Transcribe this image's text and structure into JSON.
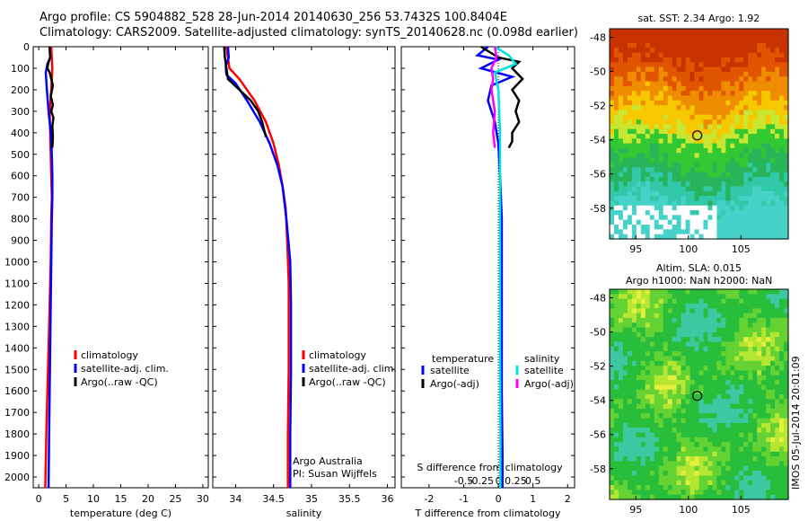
{
  "header": {
    "line1": "Argo profile: CS 5904882_528 28-Jun-2014 20140630_256 53.7432S 100.8404E",
    "line2": "Climatology: CARS2009. Satellite-adjusted climatology: synTS_20140628.nc (0.098d earlier)"
  },
  "chart_data": [
    {
      "type": "line",
      "id": "temperature",
      "xlabel": "temperature (deg C)",
      "ylabel": "",
      "xlim": [
        -1,
        31
      ],
      "ylim": [
        2050,
        0
      ],
      "xticks": [
        0,
        5,
        10,
        15,
        20,
        25,
        30
      ],
      "yticks": [
        0,
        100,
        200,
        300,
        400,
        500,
        600,
        700,
        800,
        900,
        1000,
        1100,
        1200,
        1300,
        1400,
        1500,
        1600,
        1700,
        1800,
        1900,
        2000
      ],
      "legend": [
        "climatology",
        "satellite-adj. clim.",
        "Argo(..raw -QC)"
      ],
      "series": [
        {
          "name": "climatology",
          "color": "#ff0000",
          "x": [
            2.3,
            2.4,
            2.5,
            2.3,
            2.0,
            2.1,
            2.2,
            2.3,
            2.4,
            2.3,
            2.2,
            2.0,
            1.8,
            1.6,
            1.4,
            1.2
          ],
          "y": [
            0,
            50,
            100,
            200,
            300,
            400,
            500,
            600,
            700,
            800,
            1000,
            1200,
            1400,
            1600,
            1800,
            2050
          ]
        },
        {
          "name": "satellite-adj. clim.",
          "color": "#0000ff",
          "x": [
            2.0,
            2.1,
            1.6,
            1.3,
            1.5,
            1.8,
            2.2,
            2.4,
            2.5,
            2.5,
            2.4,
            2.3,
            2.2,
            2.1,
            2.0,
            1.9,
            1.8
          ],
          "y": [
            0,
            50,
            80,
            120,
            200,
            300,
            400,
            500,
            600,
            700,
            800,
            1000,
            1200,
            1400,
            1600,
            1800,
            2050
          ]
        },
        {
          "name": "Argo(..raw -QC)",
          "color": "#000000",
          "x": [
            2.0,
            2.1,
            1.7,
            1.6,
            2.0,
            2.3,
            2.6,
            2.2,
            2.6,
            2.3,
            2.7,
            2.5,
            2.6,
            2.5
          ],
          "y": [
            0,
            50,
            80,
            100,
            120,
            150,
            180,
            230,
            270,
            300,
            330,
            370,
            420,
            470
          ]
        }
      ]
    },
    {
      "type": "line",
      "id": "salinity",
      "xlabel": "salinity",
      "ylabel": "",
      "xlim": [
        33.7,
        36.1
      ],
      "ylim": [
        2050,
        0
      ],
      "xticks": [
        34,
        34.5,
        35,
        35.5,
        36
      ],
      "legend": [
        "climatology",
        "satellite-adj. clim.",
        "Argo(..raw -QC)"
      ],
      "annotation": [
        "Argo Australia",
        "PI: Susan Wijffels"
      ],
      "series": [
        {
          "name": "climatology",
          "color": "#ff0000",
          "x": [
            33.88,
            33.9,
            33.92,
            34.05,
            34.25,
            34.4,
            34.5,
            34.57,
            34.62,
            34.66,
            34.68,
            34.7,
            34.7,
            34.7,
            34.69,
            34.69
          ],
          "y": [
            0,
            50,
            100,
            150,
            250,
            350,
            450,
            550,
            650,
            750,
            900,
            1100,
            1300,
            1500,
            1800,
            2050
          ]
        },
        {
          "name": "satellite-adj. clim.",
          "color": "#0000ff",
          "x": [
            33.9,
            33.91,
            33.87,
            33.88,
            34.0,
            34.15,
            34.32,
            34.45,
            34.55,
            34.62,
            34.67,
            34.72,
            34.73,
            34.73,
            34.72,
            34.72
          ],
          "y": [
            0,
            50,
            90,
            130,
            170,
            250,
            350,
            450,
            550,
            650,
            800,
            1000,
            1200,
            1500,
            1800,
            2050
          ]
        },
        {
          "name": "Argo(..raw -QC)",
          "color": "#000000",
          "x": [
            33.85,
            33.86,
            33.88,
            33.9,
            34.05,
            34.2,
            34.3,
            34.35,
            34.4
          ],
          "y": [
            0,
            50,
            100,
            150,
            200,
            250,
            300,
            350,
            420
          ]
        }
      ]
    },
    {
      "type": "line",
      "id": "difference",
      "xlabel": "T difference from climatology",
      "ylabel": "",
      "xlim": [
        -2.8,
        2.2
      ],
      "ylim": [
        2050,
        0
      ],
      "xticks": [
        -2,
        -1,
        0,
        1,
        2
      ],
      "secondary_xlabel": "S difference from climatology",
      "secondary_xticks": [
        "-0.5",
        "-0.25",
        "0",
        "0.25",
        "0.5"
      ],
      "legend_headers": [
        "temperature",
        "salinity"
      ],
      "legend": [
        "satellite",
        "Argo(-adj)",
        "satellite",
        "Argo(-adj)"
      ],
      "series": [
        {
          "name": "temperature satellite",
          "color": "#0000ff",
          "x": [
            -0.3,
            -0.6,
            0.0,
            -0.5,
            0.4,
            -0.2,
            -0.3,
            -0.1,
            0.0,
            0.05,
            0.1,
            0.1,
            0.1,
            0.1,
            0.12,
            0.12
          ],
          "y": [
            0,
            40,
            60,
            100,
            140,
            180,
            250,
            350,
            450,
            600,
            800,
            1000,
            1300,
            1600,
            1900,
            2050
          ]
        },
        {
          "name": "temperature Argo(-adj)",
          "color": "#000000",
          "x": [
            -0.5,
            0.0,
            0.6,
            0.4,
            0.7,
            0.4,
            0.6,
            0.5,
            0.6,
            0.4,
            0.4,
            0.3
          ],
          "y": [
            0,
            50,
            70,
            100,
            150,
            200,
            250,
            300,
            350,
            400,
            440,
            470
          ]
        },
        {
          "name": "salinity satellite",
          "color": "#00e0e0",
          "x": [
            -0.1,
            0.3,
            0.5,
            -0.1,
            0.0,
            0.05,
            0.05,
            0.05,
            0.05,
            0.06,
            0.06
          ],
          "y": [
            0,
            40,
            80,
            120,
            200,
            400,
            700,
            1000,
            1400,
            1800,
            2050
          ]
        },
        {
          "name": "salinity Argo(-adj)",
          "color": "#ff00ff",
          "x": [
            -0.1,
            -0.05,
            -0.2,
            -0.15,
            -0.2,
            -0.1,
            -0.15,
            -0.1
          ],
          "y": [
            0,
            50,
            100,
            150,
            200,
            300,
            400,
            470
          ]
        }
      ]
    },
    {
      "type": "heatmap",
      "id": "sst-map",
      "title": "sat. SST: 2.34 Argo: 1.92",
      "xticks": [
        95,
        100,
        105
      ],
      "yticks": [
        -48,
        -50,
        -52,
        -54,
        -56,
        -58
      ],
      "xlim": [
        92.5,
        109.5
      ],
      "ylim": [
        -59.8,
        -47.5
      ],
      "marker": {
        "lon": 100.84,
        "lat": -53.74
      }
    },
    {
      "type": "heatmap",
      "id": "sla-map",
      "title": "Altim. SLA: 0.015",
      "title2": "Argo h1000: NaN h2000: NaN",
      "xticks": [
        95,
        100,
        105
      ],
      "yticks": [
        -48,
        -50,
        -52,
        -54,
        -56,
        -58
      ],
      "xlim": [
        92.5,
        109.5
      ],
      "ylim": [
        -59.8,
        -47.5
      ],
      "marker": {
        "lon": 100.84,
        "lat": -53.74
      }
    }
  ],
  "side_label": "IMOS 05-Jul-2014 20:01:09",
  "colors": {
    "axis": "#000000",
    "background": "#ffffff"
  }
}
